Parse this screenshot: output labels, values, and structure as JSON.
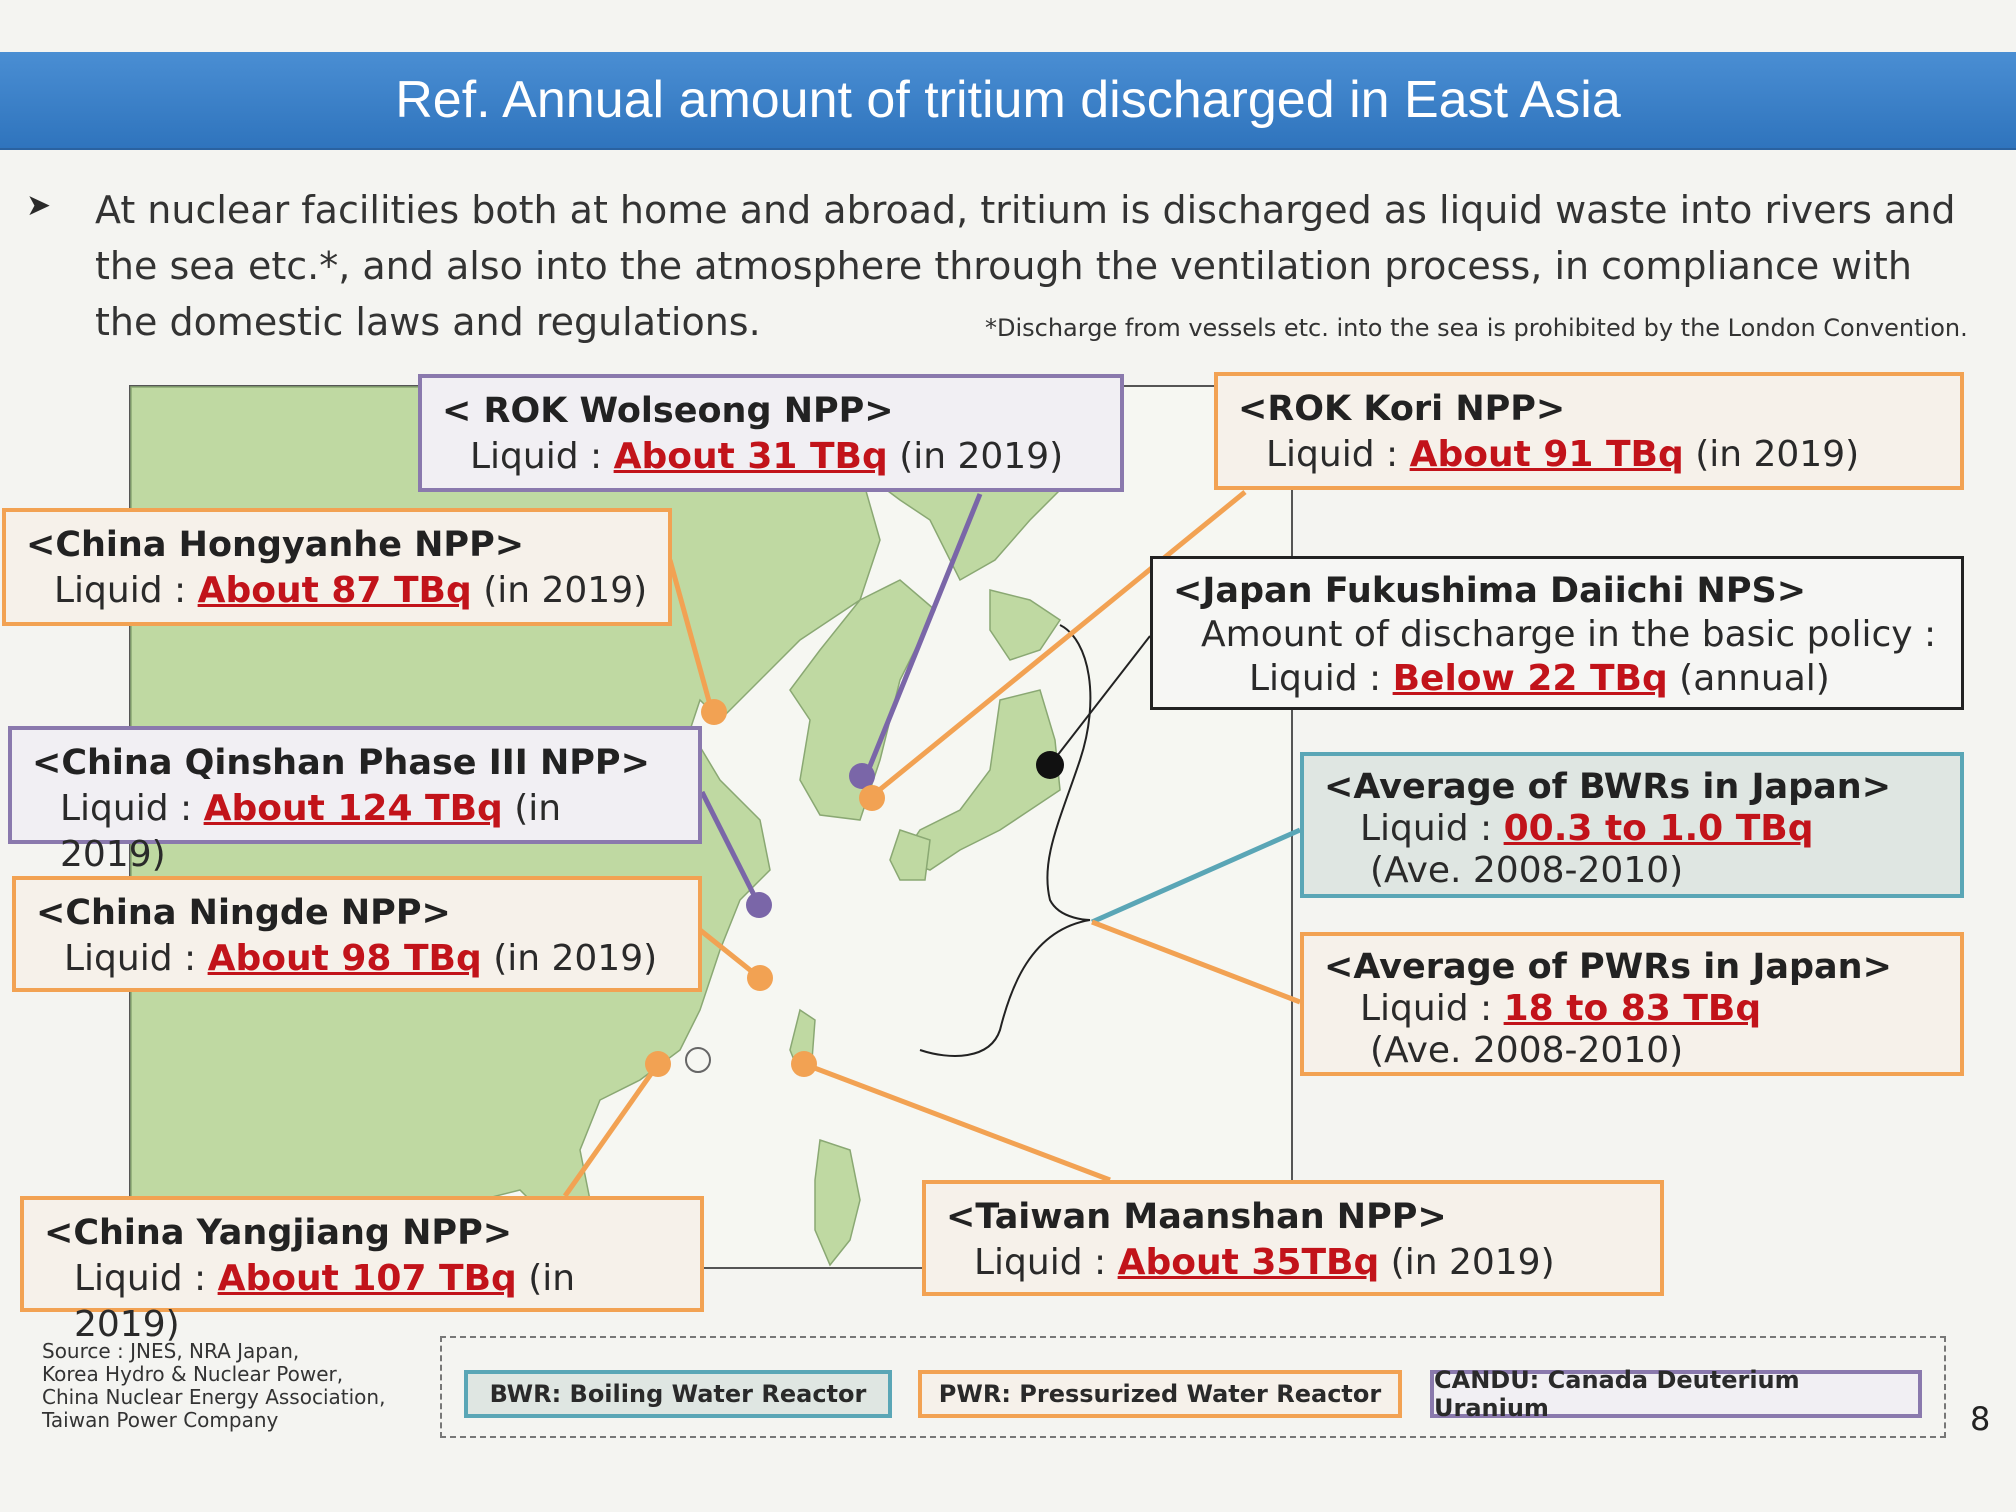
{
  "title": "Ref. Annual amount of tritium discharged in East Asia",
  "bullet_icon": "arrow-bullet-icon",
  "intro": "At nuclear facilities both at home and abroad, tritium is discharged as liquid waste into rivers and the sea etc.*, and also into the atmosphere through the ventilation process, in compliance with the domestic laws and regulations.",
  "footnote": "*Discharge from vessels etc. into the sea is prohibited by the London Convention.",
  "colors": {
    "pwr": "#f2a253",
    "bwr": "#5aa6b6",
    "candu": "#8a79ad",
    "value": "#c2131a",
    "land": "#bfd9a2",
    "sea": "#f6f7f2"
  },
  "facilities": {
    "wolseong": {
      "name": "< ROK Wolseong NPP>",
      "prefix": "Liquid : ",
      "value": "About 31 TBq",
      "suffix": " (in 2019)"
    },
    "kori": {
      "name": "<ROK Kori NPP>",
      "prefix": "Liquid : ",
      "value": "About 91 TBq",
      "suffix": " (in 2019)"
    },
    "hongyanhe": {
      "name": "<China Hongyanhe NPP>",
      "prefix": "Liquid : ",
      "value": "About 87 TBq",
      "suffix": " (in 2019)"
    },
    "fukushima": {
      "name": "<Japan Fukushima Daiichi NPS>",
      "line1": "Amount of discharge in the basic policy :",
      "prefix": "Liquid : ",
      "value": "Below 22 TBq",
      "suffix": " (annual)"
    },
    "qinshan": {
      "name": "<China  Qinshan Phase III NPP>",
      "prefix": "Liquid : ",
      "value": "About 124 TBq",
      "suffix": " (in 2019)"
    },
    "bwr_avg": {
      "name": "<Average of BWRs in Japan>",
      "prefix": "Liquid : ",
      "value": "00.3 to 1.0 TBq",
      "period": "(Ave. 2008-2010)"
    },
    "ningde": {
      "name": "<China Ningde NPP>",
      "prefix": "Liquid : ",
      "value": "About 98 TBq",
      "suffix": " (in 2019)"
    },
    "pwr_avg": {
      "name": "<Average of PWRs in Japan>",
      "prefix": "Liquid : ",
      "value": "18 to 83 TBq",
      "period": "(Ave. 2008-2010)"
    },
    "yangjiang": {
      "name": "<China Yangjiang NPP>",
      "prefix": "Liquid : ",
      "value": "About 107 TBq",
      "suffix": " (in 2019)"
    },
    "maanshan": {
      "name": "<Taiwan Maanshan NPP>",
      "prefix": "Liquid : ",
      "value": "About 35TBq",
      "suffix": " (in 2019)"
    }
  },
  "source_lines": [
    "Source : JNES, NRA Japan,",
    "Korea Hydro & Nuclear Power,",
    "China Nuclear Energy Association,",
    "Taiwan Power Company"
  ],
  "legend": {
    "bwr": "BWR: Boiling Water Reactor",
    "pwr": "PWR: Pressurized Water Reactor",
    "candu": "CANDU: Canada Deuterium Uranium"
  },
  "page_number": "8"
}
